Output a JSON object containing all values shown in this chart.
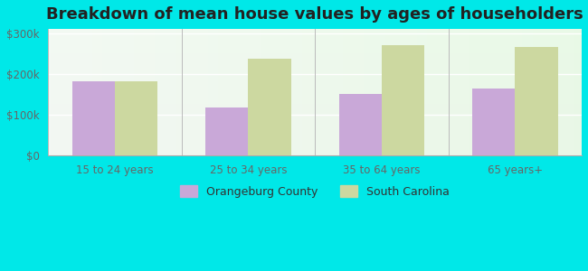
{
  "title": "Breakdown of mean house values by ages of householders",
  "categories": [
    "15 to 24 years",
    "25 to 34 years",
    "35 to 64 years",
    "65 years+"
  ],
  "orangeburg_values": [
    183000,
    118000,
    152000,
    165000
  ],
  "sc_values": [
    183000,
    237000,
    271000,
    265000
  ],
  "orangeburg_color": "#c9a8d8",
  "sc_color": "#ccd8a0",
  "outer_background": "#00e8e8",
  "ylim": [
    0,
    310000
  ],
  "yticks": [
    0,
    100000,
    200000,
    300000
  ],
  "ytick_labels": [
    "$0",
    "$100k",
    "$200k",
    "$300k"
  ],
  "bar_width": 0.32,
  "legend_labels": [
    "Orangeburg County",
    "South Carolina"
  ],
  "title_fontsize": 13,
  "tick_fontsize": 8.5,
  "legend_fontsize": 9
}
